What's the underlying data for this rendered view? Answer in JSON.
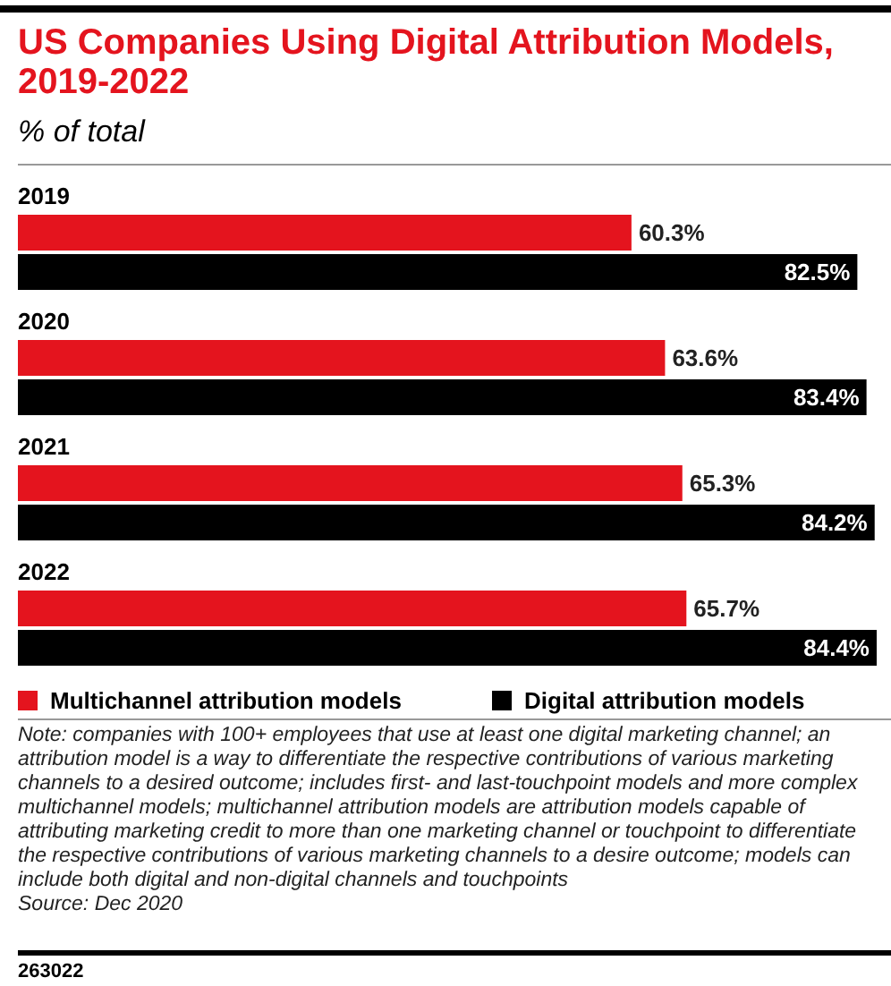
{
  "chart_data": {
    "type": "bar",
    "orientation": "horizontal",
    "title": "US Companies Using Digital Attribution Models, 2019-2022",
    "subtitle": "% of total",
    "categories": [
      "2019",
      "2020",
      "2021",
      "2022"
    ],
    "series": [
      {
        "name": "Multichannel attribution models",
        "color": "#e4141e",
        "values": [
          60.3,
          63.6,
          65.3,
          65.7
        ],
        "value_labels": [
          "60.3%",
          "63.6%",
          "65.3%",
          "65.7%"
        ]
      },
      {
        "name": "Digital attribution models",
        "color": "#000000",
        "values": [
          82.5,
          83.4,
          84.2,
          84.4
        ],
        "value_labels": [
          "82.5%",
          "83.4%",
          "84.2%",
          "84.4%"
        ]
      }
    ],
    "legend": "bottom",
    "annotations": [
      "Note: companies with 100+ employees that use at least one digital marketing channel; an attribution model is a way to differentiate the respective contributions of various marketing channels to a desired outcome; includes first- and last-touchpoint models and more complex multichannel models; multichannel attribution models are attribution models capable of attributing marketing credit to more than one marketing channel or touchpoint to differentiate the respective contributions of various marketing channels to a desire outcome; models can include both digital and non-digital channels and touchpoints",
      "Source: Dec 2020",
      "263022"
    ]
  }
}
